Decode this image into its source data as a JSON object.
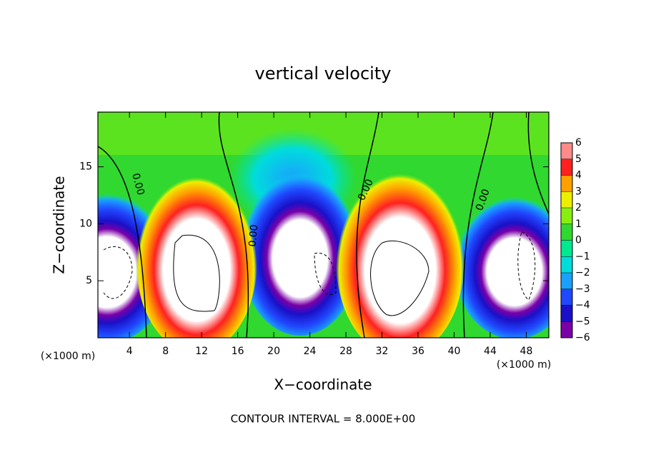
{
  "chart_data": {
    "type": "contour",
    "title": "vertical velocity",
    "xlabel": "X−coordinate",
    "ylabel": "Z−coordinate",
    "axis_unit": "(×1000 m)",
    "annotation": "CONTOUR INTERVAL = 8.000E+00",
    "contour_label": "0.00",
    "xlim": [
      0.5,
      50.5
    ],
    "xticks": [
      4,
      8,
      12,
      16,
      20,
      24,
      28,
      32,
      36,
      40,
      44,
      48
    ],
    "ylim": [
      0,
      19.8
    ],
    "yticks": [
      5,
      10,
      15
    ],
    "colorbar": {
      "levels": [
        {
          "value": -6,
          "label": "−6"
        },
        {
          "value": -5,
          "label": "−5"
        },
        {
          "value": -4,
          "label": "−4"
        },
        {
          "value": -3,
          "label": "−3"
        },
        {
          "value": -2,
          "label": "−2"
        },
        {
          "value": -1,
          "label": "−1"
        },
        0,
        1,
        2,
        3,
        4,
        5,
        6
      ],
      "colors": [
        "#7a00a8",
        "#1a10c8",
        "#2048ff",
        "#1aa0ff",
        "#00dcdc",
        "#00e890",
        "#30d830",
        "#88ee10",
        "#eeee00",
        "#ffa000",
        "#ff2020",
        "#ff8a8a"
      ]
    }
  }
}
